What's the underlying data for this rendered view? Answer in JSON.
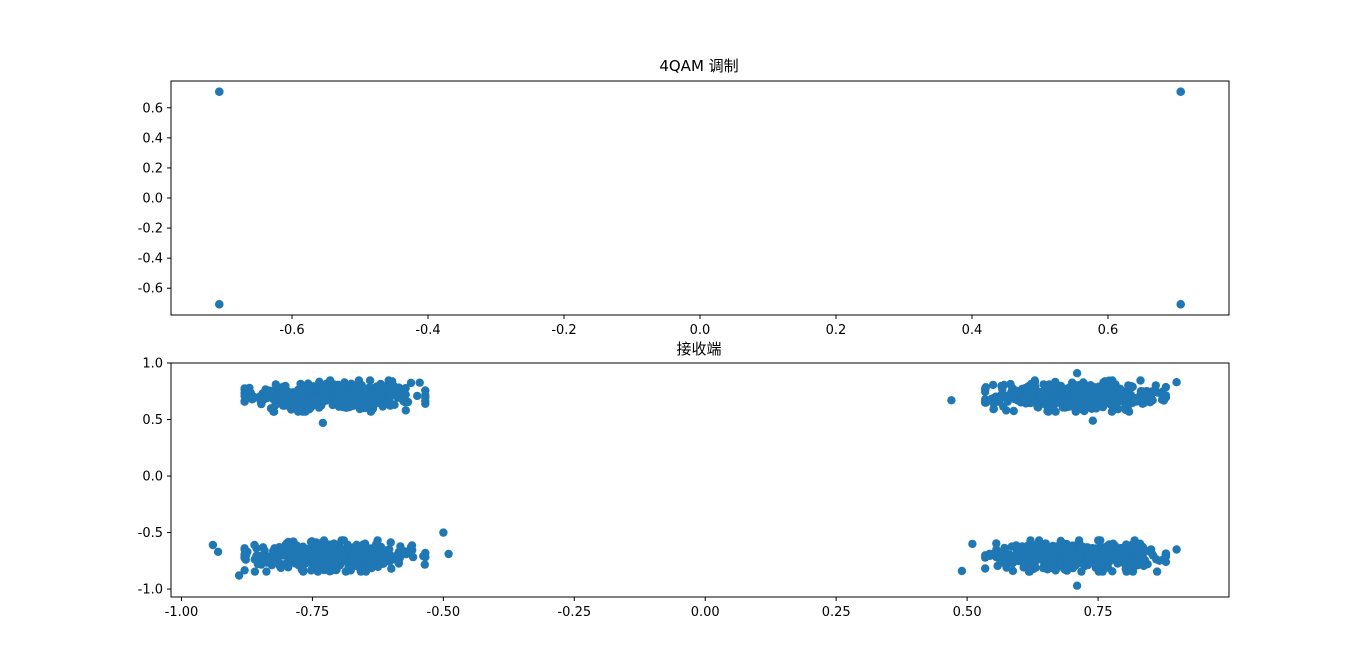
{
  "chart_data": [
    {
      "type": "scatter",
      "title": "4QAM 调制",
      "xlabel": "",
      "ylabel": "",
      "xlim": [
        -0.778,
        0.778
      ],
      "ylim": [
        -0.778,
        0.778
      ],
      "x_ticks": [
        "-0.6",
        "-0.4",
        "-0.2",
        "0.0",
        "0.2",
        "0.4",
        "0.6"
      ],
      "x_tick_values": [
        -0.6,
        -0.4,
        -0.2,
        0.0,
        0.2,
        0.4,
        0.6
      ],
      "y_ticks": [
        "0.6",
        "0.4",
        "0.2",
        "0.0",
        "-0.2",
        "-0.4",
        "-0.6"
      ],
      "y_tick_values": [
        0.6,
        0.4,
        0.2,
        0.0,
        -0.2,
        -0.4,
        -0.6
      ],
      "grid": false,
      "color": "#1f77b4",
      "series": [
        {
          "points": [
            [
              -0.707,
              0.707
            ],
            [
              0.707,
              0.707
            ],
            [
              -0.707,
              -0.707
            ],
            [
              0.707,
              -0.707
            ]
          ]
        }
      ]
    },
    {
      "type": "scatter",
      "title": "接收端",
      "xlabel": "",
      "ylabel": "",
      "xlim": [
        -1.02,
        1.0
      ],
      "ylim": [
        -1.07,
        1.0
      ],
      "x_ticks": [
        "-1.00",
        "-0.75",
        "-0.50",
        "-0.25",
        "0.00",
        "0.25",
        "0.50",
        "0.75"
      ],
      "x_tick_values": [
        -1.0,
        -0.75,
        -0.5,
        -0.25,
        0.0,
        0.25,
        0.5,
        0.75
      ],
      "y_ticks": [
        "1.0",
        "0.5",
        "0.0",
        "-0.5",
        "-1.0"
      ],
      "y_tick_values": [
        1.0,
        0.5,
        0.0,
        -0.5,
        -1.0
      ],
      "grid": false,
      "color": "#1f77b4",
      "clusters": [
        {
          "center": [
            -0.707,
            0.707
          ],
          "sx": 0.075,
          "sy": 0.06,
          "n": 480
        },
        {
          "center": [
            0.707,
            0.707
          ],
          "sx": 0.075,
          "sy": 0.06,
          "n": 480
        },
        {
          "center": [
            -0.707,
            -0.707
          ],
          "sx": 0.075,
          "sy": 0.06,
          "n": 480
        },
        {
          "center": [
            0.707,
            -0.707
          ],
          "sx": 0.075,
          "sy": 0.06,
          "n": 480
        }
      ],
      "outliers": [
        [
          -0.94,
          -0.61
        ],
        [
          -0.93,
          -0.67
        ],
        [
          -0.89,
          -0.88
        ],
        [
          -0.5,
          -0.5
        ],
        [
          -0.49,
          -0.69
        ],
        [
          0.9,
          0.83
        ],
        [
          0.9,
          -0.65
        ],
        [
          0.49,
          -0.84
        ],
        [
          0.51,
          -0.6
        ],
        [
          0.71,
          -0.97
        ],
        [
          -0.73,
          0.47
        ],
        [
          0.47,
          0.67
        ],
        [
          0.71,
          0.91
        ],
        [
          0.74,
          0.49
        ]
      ]
    }
  ]
}
